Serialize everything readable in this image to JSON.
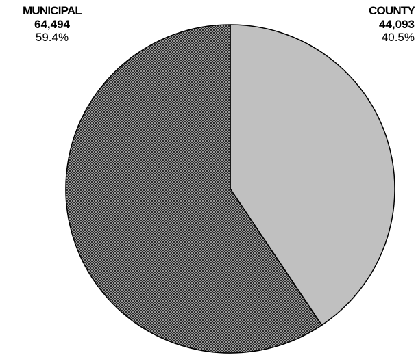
{
  "chart_data": {
    "type": "pie",
    "title": "",
    "slices": [
      {
        "name": "COUNTY",
        "value": 44093,
        "value_label": "44,093",
        "percent_label": "40.5%",
        "fill": "#c0c0c0",
        "pattern": "solid"
      },
      {
        "name": "MUNICIPAL",
        "value": 64494,
        "value_label": "64,494",
        "percent_label": "59.4%",
        "fill": "#808080",
        "pattern": "crosshatch"
      }
    ],
    "start_angle": "12 o'clock",
    "direction": "clockwise",
    "legend": "none"
  }
}
